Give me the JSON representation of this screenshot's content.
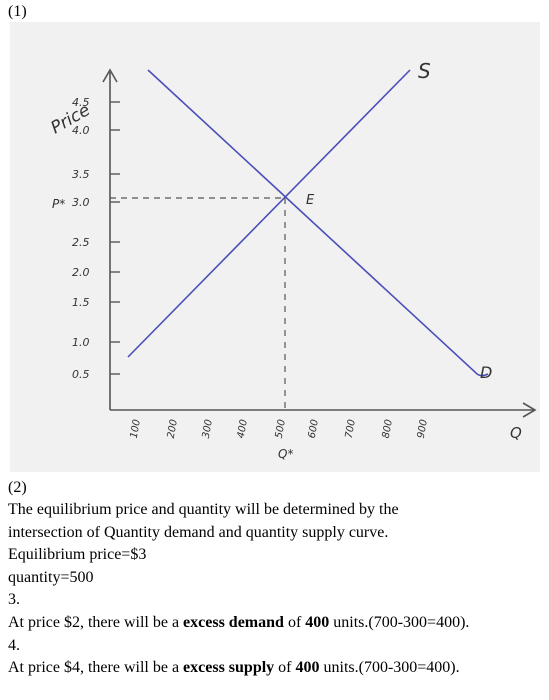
{
  "section1": {
    "label": "(1)",
    "graph": {
      "y_label": "Price",
      "x_label": "Q",
      "p_star": "P*",
      "q_star": "Q*",
      "supply_label": "S",
      "demand_label": "D",
      "equilibrium_label": "E",
      "y_ticks": [
        "4.5",
        "4.0",
        "3.5",
        "3.0",
        "2.5",
        "2.0",
        "1.5",
        "1.0",
        "0.5"
      ],
      "x_ticks": [
        "100",
        "200",
        "300",
        "400",
        "500",
        "600",
        "700",
        "800",
        "900"
      ]
    }
  },
  "section2": {
    "label": "(2)",
    "lines": [
      "The equilibrium price and quantity will be determined by the",
      "intersection of Quantity demand and quantity supply curve.",
      "Equilibrium price=$3",
      "quantity=500"
    ]
  },
  "items": [
    {
      "label": "3.",
      "runs": [
        {
          "text": "At price $2, there will be a "
        },
        {
          "text": "excess demand",
          "bold": true
        },
        {
          "text": " of "
        },
        {
          "text": "400",
          "bold": true
        },
        {
          "text": " units.(700-300=400)."
        }
      ]
    },
    {
      "label": "4.",
      "runs": [
        {
          "text": "At price $4, there will be a "
        },
        {
          "text": "excess supply",
          "bold": true
        },
        {
          "text": " of "
        },
        {
          "text": "400",
          "bold": true
        },
        {
          "text": " units.(700-300=400)."
        }
      ]
    }
  ]
}
